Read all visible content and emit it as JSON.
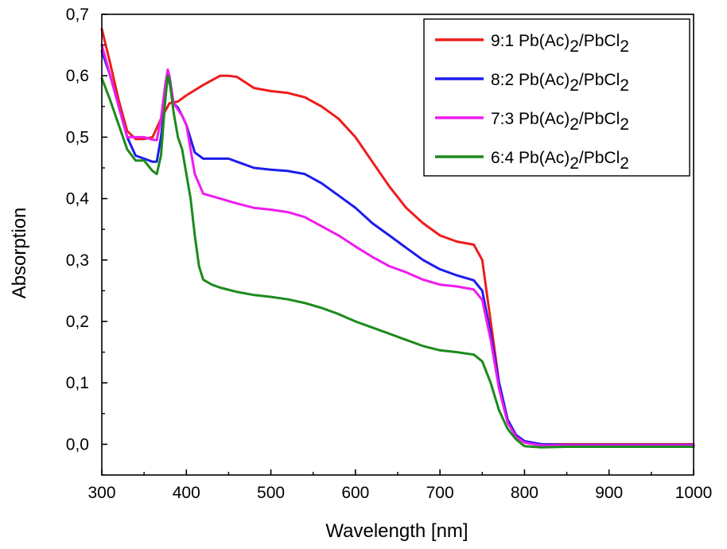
{
  "chart_data": {
    "type": "line",
    "xlabel": "Wavelength [nm]",
    "ylabel": "Absorption",
    "xlim": [
      300,
      1000
    ],
    "ylim": [
      -0.05,
      0.7
    ],
    "x_ticks": [
      300,
      400,
      500,
      600,
      700,
      800,
      900,
      1000
    ],
    "x_tick_labels": [
      "300",
      "400",
      "500",
      "600",
      "700",
      "800",
      "900",
      "1000"
    ],
    "y_ticks": [
      0.0,
      0.1,
      0.2,
      0.3,
      0.4,
      0.5,
      0.6,
      0.7
    ],
    "y_tick_labels": [
      "0,0",
      "0,1",
      "0,2",
      "0,3",
      "0,4",
      "0,5",
      "0,6",
      "0,7"
    ],
    "grid": false,
    "legend_position": "top-right",
    "series": [
      {
        "name_prefix": "9:1 Pb(Ac)",
        "name_sub1": "2",
        "name_mid": "/PbCl",
        "name_sub2": "2",
        "color": "#ee1c1c",
        "points": [
          [
            300,
            0.676
          ],
          [
            310,
            0.62
          ],
          [
            320,
            0.56
          ],
          [
            330,
            0.51
          ],
          [
            340,
            0.497
          ],
          [
            350,
            0.497
          ],
          [
            360,
            0.5
          ],
          [
            370,
            0.53
          ],
          [
            380,
            0.555
          ],
          [
            390,
            0.558
          ],
          [
            400,
            0.568
          ],
          [
            420,
            0.585
          ],
          [
            440,
            0.6
          ],
          [
            450,
            0.6
          ],
          [
            460,
            0.598
          ],
          [
            480,
            0.58
          ],
          [
            500,
            0.575
          ],
          [
            520,
            0.572
          ],
          [
            540,
            0.565
          ],
          [
            560,
            0.55
          ],
          [
            580,
            0.53
          ],
          [
            600,
            0.5
          ],
          [
            620,
            0.46
          ],
          [
            640,
            0.42
          ],
          [
            660,
            0.385
          ],
          [
            680,
            0.36
          ],
          [
            700,
            0.34
          ],
          [
            720,
            0.33
          ],
          [
            740,
            0.325
          ],
          [
            750,
            0.3
          ],
          [
            760,
            0.2
          ],
          [
            770,
            0.1
          ],
          [
            780,
            0.04
          ],
          [
            790,
            0.015
          ],
          [
            800,
            0.005
          ],
          [
            820,
            0.0
          ],
          [
            850,
            0.0
          ],
          [
            900,
            0.0
          ],
          [
            950,
            0.0
          ],
          [
            1000,
            0.0
          ]
        ]
      },
      {
        "name_prefix": "8:2 Pb(Ac)",
        "name_sub1": "2",
        "name_mid": "/PbCl",
        "name_sub2": "2",
        "color": "#1c1cee",
        "points": [
          [
            300,
            0.64
          ],
          [
            310,
            0.6
          ],
          [
            320,
            0.55
          ],
          [
            330,
            0.5
          ],
          [
            340,
            0.47
          ],
          [
            350,
            0.465
          ],
          [
            360,
            0.46
          ],
          [
            365,
            0.46
          ],
          [
            370,
            0.5
          ],
          [
            375,
            0.56
          ],
          [
            378,
            0.605
          ],
          [
            380,
            0.59
          ],
          [
            385,
            0.555
          ],
          [
            390,
            0.548
          ],
          [
            395,
            0.535
          ],
          [
            400,
            0.52
          ],
          [
            410,
            0.475
          ],
          [
            420,
            0.465
          ],
          [
            440,
            0.465
          ],
          [
            450,
            0.465
          ],
          [
            460,
            0.46
          ],
          [
            480,
            0.45
          ],
          [
            500,
            0.447
          ],
          [
            520,
            0.445
          ],
          [
            540,
            0.44
          ],
          [
            560,
            0.425
          ],
          [
            580,
            0.405
          ],
          [
            600,
            0.385
          ],
          [
            620,
            0.36
          ],
          [
            640,
            0.34
          ],
          [
            660,
            0.32
          ],
          [
            680,
            0.3
          ],
          [
            700,
            0.285
          ],
          [
            720,
            0.275
          ],
          [
            740,
            0.267
          ],
          [
            750,
            0.25
          ],
          [
            760,
            0.18
          ],
          [
            770,
            0.1
          ],
          [
            780,
            0.04
          ],
          [
            790,
            0.015
          ],
          [
            800,
            0.005
          ],
          [
            820,
            0.0
          ],
          [
            850,
            -0.001
          ],
          [
            900,
            -0.001
          ],
          [
            950,
            -0.001
          ],
          [
            1000,
            -0.001
          ]
        ]
      },
      {
        "name_prefix": "7:3 Pb(Ac)",
        "name_sub1": "2",
        "name_mid": "/PbCl",
        "name_sub2": "2",
        "color": "#ee1cee",
        "points": [
          [
            300,
            0.65
          ],
          [
            310,
            0.6
          ],
          [
            320,
            0.55
          ],
          [
            330,
            0.5
          ],
          [
            340,
            0.5
          ],
          [
            350,
            0.5
          ],
          [
            360,
            0.496
          ],
          [
            365,
            0.495
          ],
          [
            370,
            0.53
          ],
          [
            375,
            0.585
          ],
          [
            378,
            0.61
          ],
          [
            380,
            0.6
          ],
          [
            385,
            0.555
          ],
          [
            390,
            0.545
          ],
          [
            395,
            0.535
          ],
          [
            400,
            0.52
          ],
          [
            405,
            0.48
          ],
          [
            410,
            0.44
          ],
          [
            420,
            0.408
          ],
          [
            440,
            0.4
          ],
          [
            460,
            0.392
          ],
          [
            480,
            0.385
          ],
          [
            500,
            0.382
          ],
          [
            520,
            0.378
          ],
          [
            540,
            0.37
          ],
          [
            560,
            0.355
          ],
          [
            580,
            0.34
          ],
          [
            600,
            0.322
          ],
          [
            620,
            0.305
          ],
          [
            640,
            0.29
          ],
          [
            660,
            0.28
          ],
          [
            680,
            0.268
          ],
          [
            700,
            0.26
          ],
          [
            720,
            0.257
          ],
          [
            740,
            0.252
          ],
          [
            750,
            0.235
          ],
          [
            760,
            0.17
          ],
          [
            770,
            0.09
          ],
          [
            780,
            0.035
          ],
          [
            790,
            0.012
          ],
          [
            800,
            0.003
          ],
          [
            820,
            -0.002
          ],
          [
            850,
            -0.002
          ],
          [
            900,
            -0.002
          ],
          [
            950,
            -0.002
          ],
          [
            1000,
            -0.002
          ]
        ]
      },
      {
        "name_prefix": "6:4 Pb(Ac)",
        "name_sub1": "2",
        "name_mid": "/PbCl",
        "name_sub2": "2",
        "color": "#1c8a1c",
        "points": [
          [
            300,
            0.596
          ],
          [
            310,
            0.56
          ],
          [
            320,
            0.52
          ],
          [
            330,
            0.48
          ],
          [
            340,
            0.462
          ],
          [
            350,
            0.462
          ],
          [
            360,
            0.445
          ],
          [
            365,
            0.44
          ],
          [
            370,
            0.47
          ],
          [
            375,
            0.56
          ],
          [
            378,
            0.6
          ],
          [
            380,
            0.595
          ],
          [
            385,
            0.54
          ],
          [
            390,
            0.5
          ],
          [
            395,
            0.48
          ],
          [
            400,
            0.44
          ],
          [
            405,
            0.4
          ],
          [
            410,
            0.34
          ],
          [
            415,
            0.29
          ],
          [
            420,
            0.268
          ],
          [
            430,
            0.26
          ],
          [
            440,
            0.255
          ],
          [
            460,
            0.248
          ],
          [
            480,
            0.243
          ],
          [
            500,
            0.24
          ],
          [
            520,
            0.236
          ],
          [
            540,
            0.23
          ],
          [
            560,
            0.222
          ],
          [
            580,
            0.212
          ],
          [
            600,
            0.2
          ],
          [
            620,
            0.19
          ],
          [
            640,
            0.18
          ],
          [
            660,
            0.17
          ],
          [
            680,
            0.16
          ],
          [
            700,
            0.153
          ],
          [
            720,
            0.15
          ],
          [
            740,
            0.146
          ],
          [
            750,
            0.135
          ],
          [
            760,
            0.1
          ],
          [
            770,
            0.055
          ],
          [
            780,
            0.025
          ],
          [
            790,
            0.008
          ],
          [
            800,
            -0.003
          ],
          [
            820,
            -0.005
          ],
          [
            850,
            -0.004
          ],
          [
            900,
            -0.004
          ],
          [
            950,
            -0.004
          ],
          [
            1000,
            -0.004
          ]
        ]
      }
    ]
  }
}
